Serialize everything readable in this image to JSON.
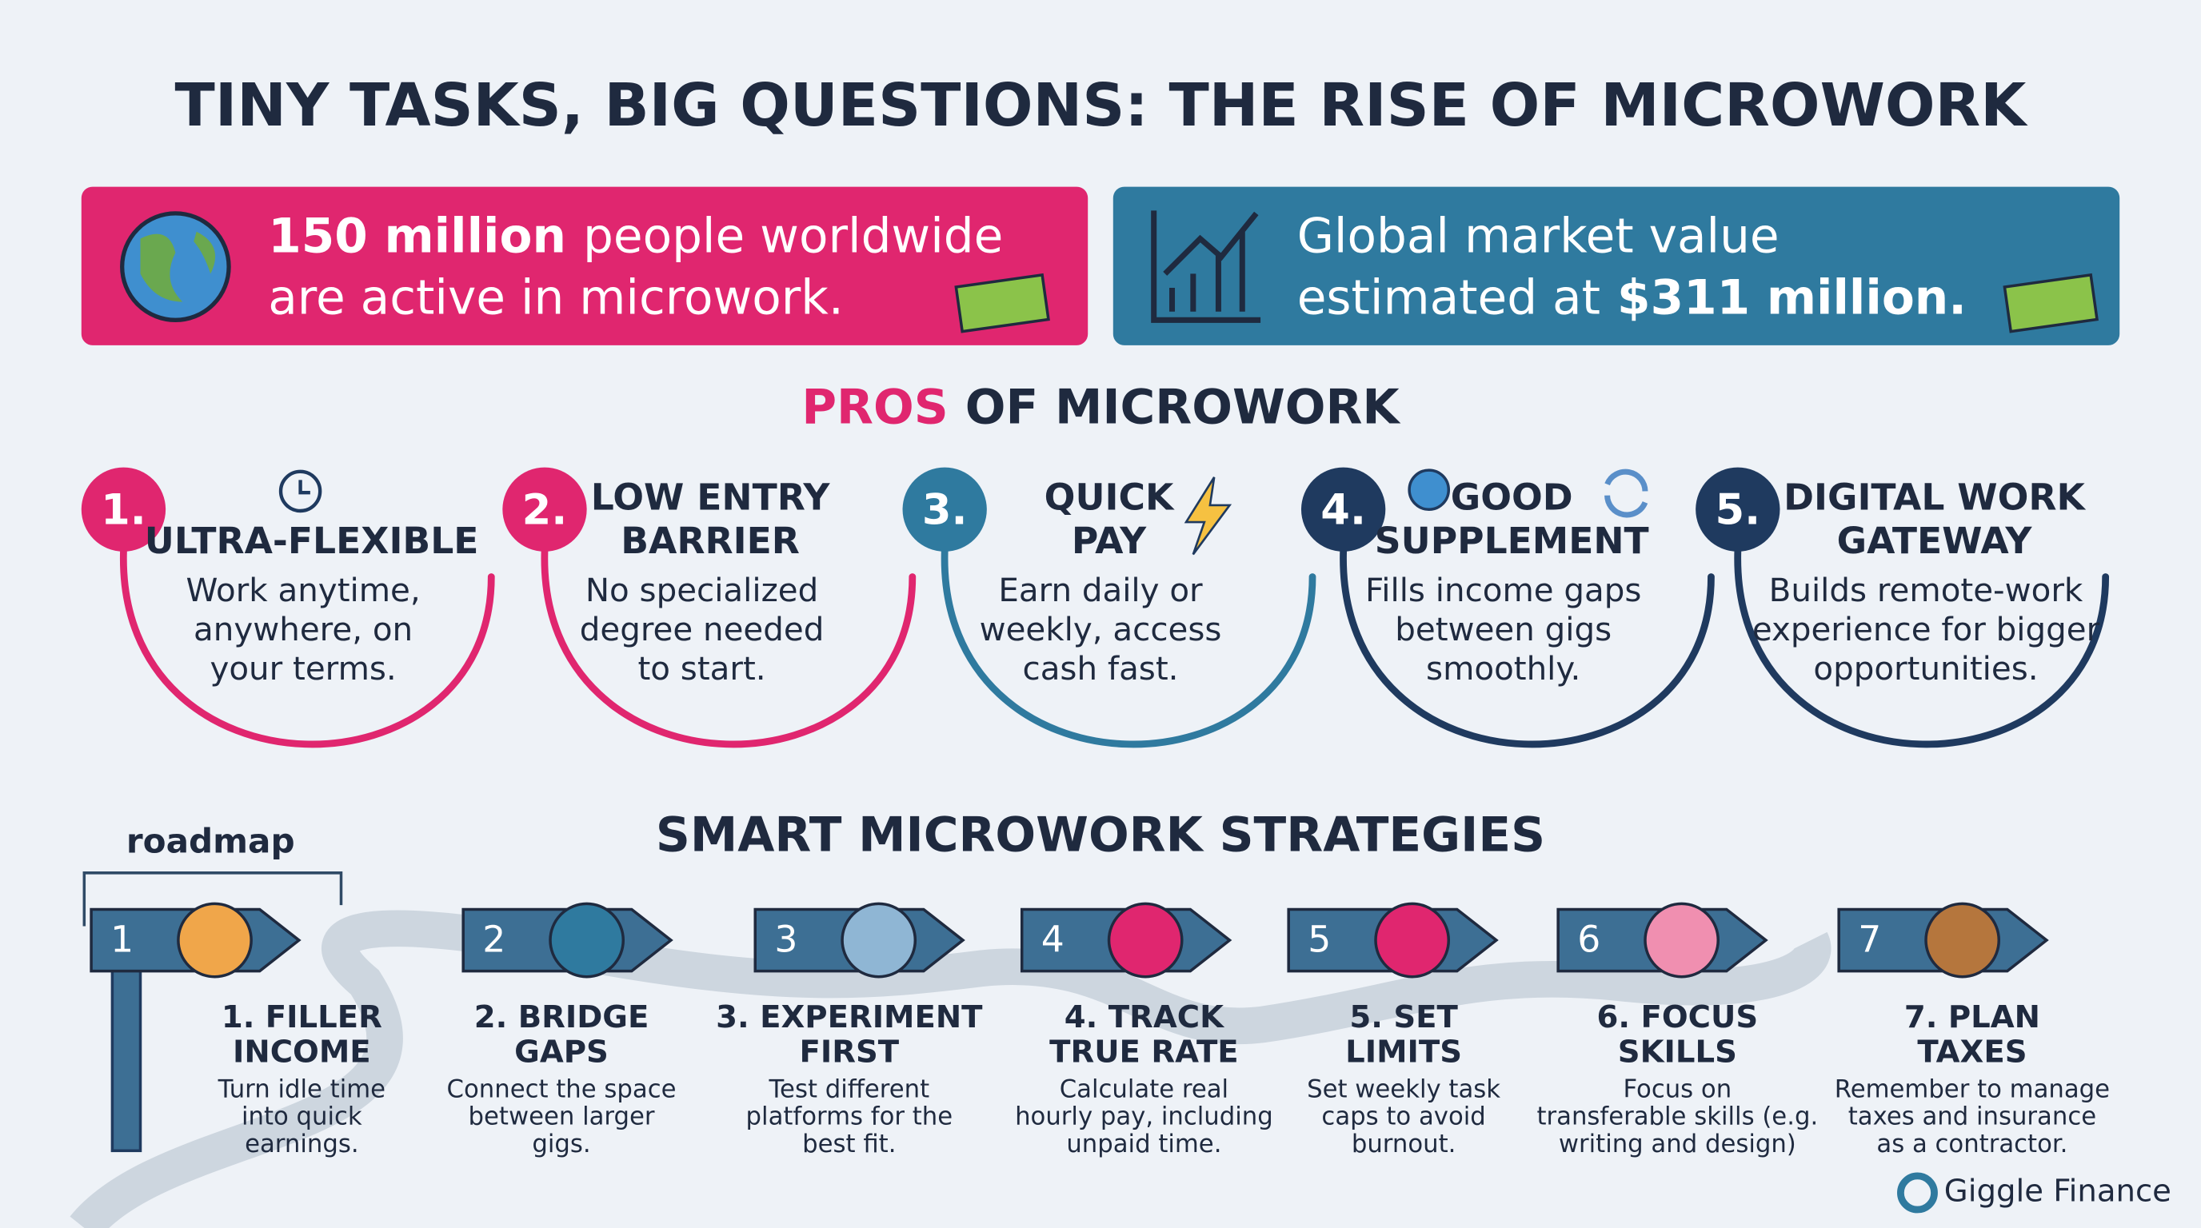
{
  "title": "TINY TASKS, BIG QUESTIONS: THE RISE OF MICROWORK",
  "stats": [
    {
      "color": "#e0266f",
      "lines": [
        [
          {
            "text": "150 million",
            "strong": true
          },
          {
            "text": "people worldwide",
            "strong": false
          }
        ],
        [
          {
            "text": "are active in microwork.",
            "strong": false
          }
        ]
      ]
    },
    {
      "color": "#2f7a9f",
      "lines": [
        [
          {
            "text": "Global market value",
            "strong": false
          }
        ],
        [
          {
            "text": "estimated at",
            "strong": false
          },
          {
            "text": "$311 million.",
            "strong": true
          }
        ]
      ]
    }
  ],
  "pros": {
    "heading_accent": "PROS",
    "heading_rest": "OF MICROWORK",
    "items": [
      {
        "number": "1.",
        "color": "#e0266f",
        "title": [
          "ULTRA-FLEXIBLE"
        ],
        "desc": [
          "Work anytime,",
          "anywhere, on",
          "your terms."
        ]
      },
      {
        "number": "2.",
        "color": "#e0266f",
        "title": [
          "LOW ENTRY",
          "BARRIER"
        ],
        "desc": [
          "No specialized",
          "degree needed",
          "to start."
        ]
      },
      {
        "number": "3.",
        "color": "#2f7a9f",
        "title": [
          "QUICK",
          "PAY"
        ],
        "desc": [
          "Earn daily or",
          "weekly, access",
          "cash fast."
        ]
      },
      {
        "number": "4.",
        "color": "#1f3a5f",
        "title": [
          "GOOD",
          "SUPPLEMENT"
        ],
        "desc": [
          "Fills income gaps",
          "between gigs",
          "smoothly."
        ]
      },
      {
        "number": "5.",
        "color": "#1f3a5f",
        "title": [
          "DIGITAL WORK",
          "GATEWAY"
        ],
        "desc": [
          "Builds remote-work",
          "experience for bigger",
          "opportunities."
        ]
      }
    ]
  },
  "strategies": {
    "heading": "SMART MICROWORK STRATEGIES",
    "roadmap": "roadmap",
    "steps": [
      {
        "sign": "1",
        "title": [
          "1. FILLER",
          "INCOME"
        ],
        "desc": [
          "Turn idle time",
          "into quick",
          "earnings."
        ]
      },
      {
        "sign": "2",
        "title": [
          "2. BRIDGE",
          "GAPS"
        ],
        "desc": [
          "Connect the space",
          "between larger",
          "gigs."
        ]
      },
      {
        "sign": "3",
        "title": [
          "3. EXPERIMENT",
          "FIRST"
        ],
        "desc": [
          "Test different",
          "platforms for the",
          "best fit."
        ]
      },
      {
        "sign": "4",
        "title": [
          "4. TRACK",
          "TRUE RATE"
        ],
        "desc": [
          "Calculate real",
          "hourly pay, including",
          "unpaid time."
        ]
      },
      {
        "sign": "5",
        "title": [
          "5. SET",
          "LIMITS"
        ],
        "desc": [
          "Set weekly task",
          "caps to avoid",
          "burnout."
        ]
      },
      {
        "sign": "6",
        "title": [
          "6. FOCUS",
          "SKILLS"
        ],
        "desc": [
          "Focus on",
          "transferable skills (e.g.",
          "writing and design)"
        ]
      },
      {
        "sign": "7",
        "title": [
          "7. PLAN",
          "TAXES"
        ],
        "desc": [
          "Remember to manage",
          "taxes and insurance",
          "as a contractor."
        ]
      }
    ]
  },
  "brand": "Giggle Finance"
}
